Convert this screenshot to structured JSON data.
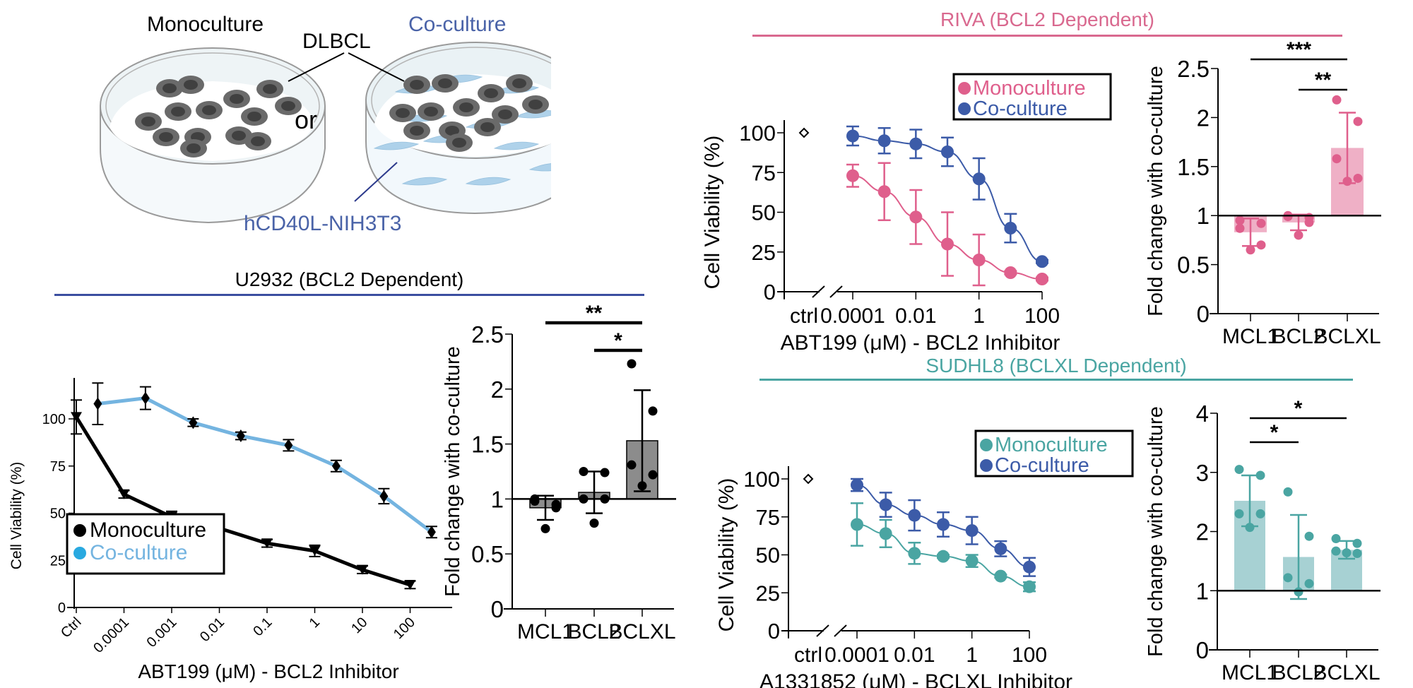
{
  "illustration": {
    "label_monoculture": "Monoculture",
    "label_coculture": "Co-culture",
    "label_dlbcl": "DLBCL",
    "label_or": "or",
    "label_stroma": "hCD40L-NIH3T3",
    "colors": {
      "coculture_text": "#4a63a8",
      "cell_dark": "#5a5a5a",
      "cell_nucleus": "#3d3d3d",
      "fibroblast": "#8fc1e3"
    }
  },
  "chart_data": [
    {
      "id": "u2932-viability",
      "panel_title": "U2932 (BCL2 Dependent)",
      "panel_color": "#3b4ea0",
      "type": "line",
      "title": "",
      "xlabel": "ABT199 (μM) - BCL2 Inhibitor",
      "ylabel": "Cell Viability (%)",
      "categories": [
        "Ctrl",
        "0.0001",
        "0.001",
        "0.01",
        "0.1",
        "1",
        "10",
        "100"
      ],
      "yticks": [
        "0",
        "25",
        "50",
        "75",
        "100"
      ],
      "ylim": [
        0,
        120
      ],
      "legend": {
        "position": "bottom-left",
        "entries": [
          "Monoculture",
          "Co-culture"
        ]
      },
      "series": [
        {
          "name": "Monoculture",
          "color": "#000000",
          "marker": "triangle-down",
          "values": [
            101,
            60,
            48,
            42,
            34,
            30,
            20,
            12
          ],
          "errors": [
            9,
            2,
            3,
            4,
            2,
            3,
            2,
            2
          ]
        },
        {
          "name": "Co-culture",
          "color": "#74b4e0",
          "marker": "diamond",
          "offset": 0.45,
          "values": [
            108,
            111,
            98,
            91,
            86,
            75,
            59,
            40
          ],
          "errors": [
            11,
            6,
            2,
            2,
            3,
            3,
            4,
            3
          ]
        }
      ]
    },
    {
      "id": "u2932-foldchange",
      "type": "bar",
      "ylabel": "Fold change with co-culture",
      "categories": [
        "MCL1",
        "BCL2",
        "BCLXL"
      ],
      "values": [
        0.92,
        1.06,
        1.53
      ],
      "sd": [
        0.11,
        0.19,
        0.46
      ],
      "points": [
        [
          0.98,
          0.95,
          1.0,
          0.92,
          0.73
        ],
        [
          1.25,
          1.24,
          1.0,
          1.0,
          0.78
        ],
        [
          2.23,
          1.8,
          1.31,
          1.22,
          1.12
        ]
      ],
      "baseline": 1,
      "yticks": [
        "0",
        "0.5",
        "1",
        "1.5",
        "2",
        "2.5"
      ],
      "ylim": [
        0,
        2.5
      ],
      "bar_color": "#8c8c8c",
      "point_color": "#000000",
      "significance": [
        {
          "from": "MCL1",
          "to": "BCLXL",
          "label": "**"
        },
        {
          "from": "BCL2",
          "to": "BCLXL",
          "label": "*"
        }
      ]
    },
    {
      "id": "riva-viability",
      "panel_title": "RIVA (BCL2 Dependent)",
      "panel_color": "#d9698f",
      "type": "line",
      "xlabel": "ABT199 (μM) - BCL2 Inhibitor",
      "ylabel": "Cell Viability (%)",
      "x_log10": [
        -4,
        -3,
        -2,
        -1,
        0,
        1,
        2
      ],
      "xticks": [
        "ctrl",
        "0.0001",
        "0.01",
        "1",
        "100"
      ],
      "yticks": [
        "0",
        "25",
        "50",
        "75",
        "100"
      ],
      "ylim": [
        0,
        100
      ],
      "ctrl_value": 100,
      "legend": {
        "position": "top-right",
        "entries": [
          "Monoculture",
          "Co-culture"
        ]
      },
      "series": [
        {
          "name": "Monoculture",
          "color": "#df5f8c",
          "values": [
            73,
            63,
            47,
            30,
            20,
            12,
            8
          ],
          "errors": [
            7,
            18,
            17,
            20,
            16,
            1,
            1
          ]
        },
        {
          "name": "Co-culture",
          "color": "#3c5ba8",
          "values": [
            98,
            95,
            93,
            88,
            71,
            40,
            19
          ],
          "errors": [
            6,
            8,
            9,
            9,
            13,
            9,
            1
          ]
        }
      ]
    },
    {
      "id": "riva-foldchange",
      "type": "bar",
      "ylabel": "Fold change with co-culture",
      "categories": [
        "MCL1",
        "BCL2",
        "BCLXL"
      ],
      "values": [
        0.83,
        0.93,
        1.69
      ],
      "sd": [
        0.14,
        0.08,
        0.36
      ],
      "points": [
        [
          0.95,
          0.92,
          0.87,
          0.7,
          0.65
        ],
        [
          1.0,
          0.98,
          0.99,
          0.93,
          0.8
        ],
        [
          2.18,
          1.96,
          1.58,
          1.38,
          1.35
        ]
      ],
      "baseline": 1,
      "yticks": [
        "0",
        "0.5",
        "1",
        "1.5",
        "2",
        "2.5"
      ],
      "ylim": [
        0,
        2.5
      ],
      "bar_color": "#efb0c6",
      "point_color": "#df5f8c",
      "significance": [
        {
          "from": "MCL1",
          "to": "BCLXL",
          "label": "***"
        },
        {
          "from": "BCL2",
          "to": "BCLXL",
          "label": "**"
        }
      ]
    },
    {
      "id": "sudhl8-viability",
      "panel_title": "SUDHL8 (BCLXL Dependent)",
      "panel_color": "#4aa5a2",
      "type": "line",
      "xlabel": "A1331852 (μM) - BCLXL Inhibitor",
      "ylabel": "Cell Viability (%)",
      "x_log10": [
        -4,
        -3,
        -2,
        -1,
        0,
        1,
        2
      ],
      "xticks": [
        "ctrl",
        "0.0001",
        "0.01",
        "1",
        "100"
      ],
      "yticks": [
        "0",
        "25",
        "50",
        "75",
        "100"
      ],
      "ylim": [
        0,
        100
      ],
      "ctrl_value": 100,
      "legend": {
        "position": "top-right",
        "entries": [
          "Monoculture",
          "Co-culture"
        ]
      },
      "series": [
        {
          "name": "Monoculture",
          "color": "#4aa5a2",
          "values": [
            70,
            64,
            51,
            49,
            46,
            36,
            29
          ],
          "errors": [
            14,
            9,
            7,
            1,
            4,
            1,
            3
          ]
        },
        {
          "name": "Co-culture",
          "color": "#3c5ba8",
          "values": [
            96,
            83,
            76,
            70,
            66,
            54,
            42
          ],
          "errors": [
            4,
            8,
            10,
            8,
            9,
            5,
            6
          ]
        }
      ]
    },
    {
      "id": "sudhl8-foldchange",
      "type": "bar",
      "ylabel": "Fold change with co-culture",
      "categories": [
        "MCL1",
        "BCL2",
        "BCLXL"
      ],
      "values": [
        2.52,
        1.57,
        1.69
      ],
      "sd": [
        0.43,
        0.71,
        0.15
      ],
      "points": [
        [
          3.05,
          2.95,
          2.3,
          2.3,
          2.07
        ],
        [
          2.67,
          1.92,
          1.22,
          1.12,
          0.98
        ],
        [
          1.88,
          1.8,
          1.67,
          1.63,
          1.64
        ]
      ],
      "baseline": 1,
      "yticks": [
        "0",
        "1",
        "2",
        "3",
        "4"
      ],
      "ylim": [
        0,
        4
      ],
      "bar_color": "#a7d1d3",
      "point_color": "#4aa5a2",
      "significance": [
        {
          "from": "MCL1",
          "to": "BCLXL",
          "label": "*"
        },
        {
          "from": "MCL1",
          "to": "BCL2",
          "label": "*"
        }
      ]
    }
  ]
}
